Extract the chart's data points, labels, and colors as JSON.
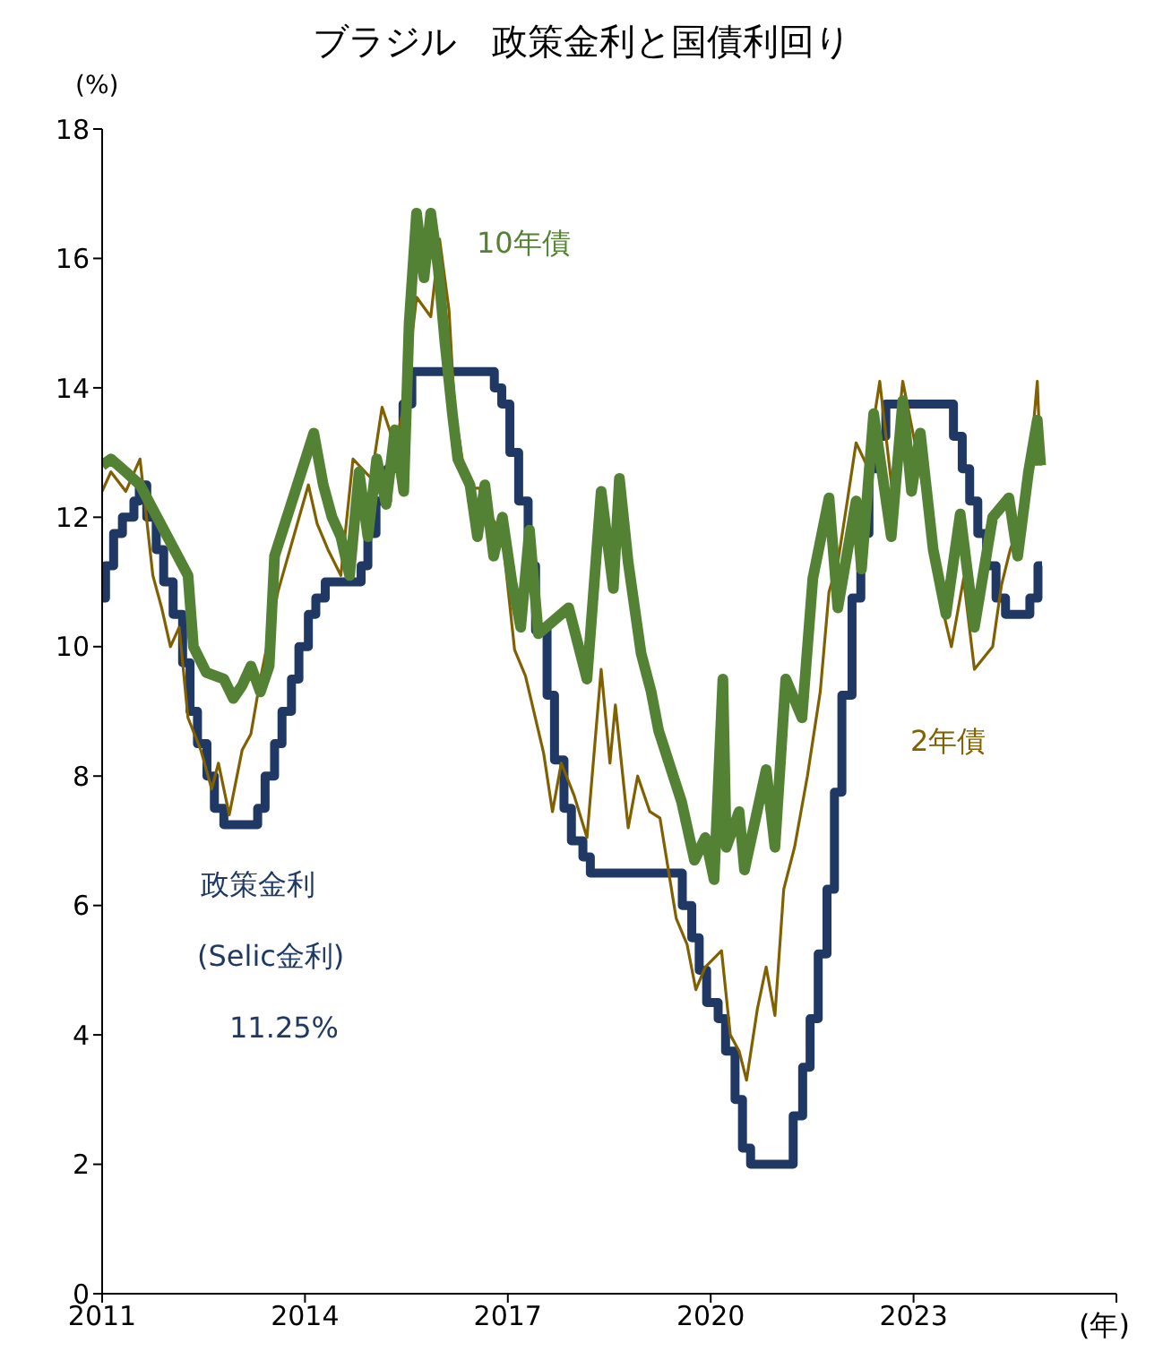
{
  "chart_data": {
    "type": "line",
    "title": "ブラジル　政策金利と国債利回り",
    "ylabel": "(%)",
    "xlabel": "(年)",
    "xlim": [
      2011,
      2026
    ],
    "xticks": [
      2011,
      2014,
      2017,
      2020,
      2023,
      {
        "value": 2026,
        "label": null
      }
    ],
    "ylim": [
      0,
      18
    ],
    "yticks": [
      0,
      2,
      4,
      6,
      8,
      10,
      12,
      14,
      16,
      18
    ],
    "marker": "none",
    "line_style": "solid",
    "annotations": [
      "(Selic金利)",
      "11.25%"
    ],
    "series": [
      {
        "name": "政策金利",
        "type": "step",
        "color": "#1f3864",
        "x": [
          2011.0,
          2011.05,
          2011.17,
          2011.3,
          2011.47,
          2011.55,
          2011.66,
          2011.8,
          2011.91,
          2012.05,
          2012.19,
          2012.3,
          2012.41,
          2012.55,
          2012.66,
          2012.8,
          2013.3,
          2013.41,
          2013.55,
          2013.66,
          2013.8,
          2013.91,
          2014.05,
          2014.16,
          2014.3,
          2014.83,
          2014.93,
          2015.05,
          2015.22,
          2015.33,
          2015.45,
          2015.58,
          2016.8,
          2016.91,
          2017.03,
          2017.16,
          2017.3,
          2017.41,
          2017.58,
          2017.69,
          2017.83,
          2017.94,
          2018.11,
          2018.22,
          2019.58,
          2019.72,
          2019.83,
          2019.94,
          2020.11,
          2020.22,
          2020.36,
          2020.47,
          2020.59,
          2021.22,
          2021.36,
          2021.47,
          2021.59,
          2021.72,
          2021.83,
          2021.94,
          2022.09,
          2022.22,
          2022.34,
          2022.47,
          2022.59,
          2023.59,
          2023.72,
          2023.83,
          2023.95,
          2024.08,
          2024.22,
          2024.36,
          2024.72,
          2024.84,
          2024.9
        ],
        "values": [
          10.75,
          11.25,
          11.75,
          12.0,
          12.25,
          12.5,
          12.0,
          11.5,
          11.0,
          10.5,
          9.75,
          9.0,
          8.5,
          8.0,
          7.5,
          7.25,
          7.5,
          8.0,
          8.5,
          9.0,
          9.5,
          10.0,
          10.5,
          10.75,
          11.0,
          11.25,
          11.75,
          12.25,
          12.75,
          13.25,
          13.75,
          14.25,
          14.0,
          13.75,
          13.0,
          12.25,
          11.25,
          10.25,
          9.25,
          8.25,
          7.5,
          7.0,
          6.75,
          6.5,
          6.0,
          5.5,
          5.0,
          4.5,
          4.25,
          3.75,
          3.0,
          2.25,
          2.0,
          2.75,
          3.5,
          4.25,
          5.25,
          6.25,
          7.75,
          9.25,
          10.75,
          11.75,
          12.75,
          13.25,
          13.75,
          13.25,
          12.75,
          12.25,
          11.75,
          11.25,
          10.75,
          10.5,
          10.75,
          11.25,
          11.25
        ]
      },
      {
        "name": "10年債",
        "type": "line",
        "color": "#548235",
        "x": [
          2011.0,
          2011.13,
          2011.35,
          2011.56,
          2012.27,
          2012.35,
          2012.54,
          2012.8,
          2012.94,
          2013.07,
          2013.2,
          2013.34,
          2013.47,
          2013.55,
          2014.13,
          2014.27,
          2014.4,
          2014.53,
          2014.66,
          2014.8,
          2014.93,
          2015.06,
          2015.2,
          2015.33,
          2015.46,
          2015.54,
          2015.65,
          2015.76,
          2015.86,
          2015.97,
          2016.07,
          2016.18,
          2016.26,
          2016.44,
          2016.55,
          2016.66,
          2016.79,
          2016.92,
          2017.06,
          2017.19,
          2017.32,
          2017.45,
          2017.9,
          2018.17,
          2018.38,
          2018.56,
          2018.65,
          2018.78,
          2018.97,
          2019.12,
          2019.23,
          2019.57,
          2019.76,
          2019.92,
          2020.05,
          2020.18,
          2020.23,
          2020.42,
          2020.5,
          2020.82,
          2020.95,
          2021.11,
          2021.35,
          2021.51,
          2021.75,
          2021.88,
          2022.15,
          2022.23,
          2022.41,
          2022.67,
          2022.84,
          2022.97,
          2023.1,
          2023.29,
          2023.48,
          2023.69,
          2023.9,
          2024.17,
          2024.41,
          2024.54,
          2024.7,
          2024.83,
          2024.88
        ],
        "values": [
          12.8,
          12.9,
          12.7,
          12.5,
          11.1,
          10.0,
          9.6,
          9.5,
          9.2,
          9.4,
          9.7,
          9.3,
          9.7,
          11.4,
          13.3,
          12.5,
          12.0,
          11.7,
          11.1,
          12.7,
          11.7,
          12.9,
          12.2,
          13.35,
          12.4,
          15.0,
          16.7,
          15.7,
          16.7,
          15.85,
          14.7,
          13.6,
          12.9,
          12.5,
          11.7,
          12.5,
          11.4,
          12.0,
          11.0,
          10.3,
          11.8,
          10.2,
          10.6,
          9.5,
          12.4,
          10.9,
          12.6,
          11.3,
          9.9,
          9.3,
          8.7,
          7.6,
          6.7,
          7.05,
          6.4,
          9.5,
          6.9,
          7.45,
          6.55,
          8.1,
          6.9,
          9.5,
          8.9,
          11.05,
          12.3,
          10.6,
          12.25,
          11.2,
          13.6,
          11.7,
          13.8,
          12.4,
          13.3,
          11.5,
          10.5,
          12.05,
          10.3,
          12.0,
          12.3,
          11.4,
          12.7,
          13.5,
          12.8
        ]
      },
      {
        "name": "2年債",
        "type": "line",
        "color": "#806000",
        "x": [
          2011.0,
          2011.13,
          2011.35,
          2011.56,
          2011.75,
          2011.88,
          2012.01,
          2012.14,
          2012.27,
          2012.46,
          2012.62,
          2012.72,
          2012.88,
          2013.07,
          2013.2,
          2013.34,
          2013.6,
          2014.05,
          2014.18,
          2014.34,
          2014.53,
          2014.71,
          2014.98,
          2015.14,
          2015.33,
          2015.46,
          2015.65,
          2015.86,
          2015.99,
          2016.13,
          2016.21,
          2016.39,
          2016.58,
          2016.74,
          2016.92,
          2017.1,
          2017.26,
          2017.53,
          2017.66,
          2017.79,
          2017.98,
          2018.17,
          2018.38,
          2018.51,
          2018.59,
          2018.78,
          2018.92,
          2019.1,
          2019.25,
          2019.49,
          2019.65,
          2019.78,
          2019.92,
          2020.16,
          2020.29,
          2020.42,
          2020.53,
          2020.69,
          2020.82,
          2020.95,
          2021.08,
          2021.24,
          2021.43,
          2021.62,
          2021.75,
          2021.88,
          2022.02,
          2022.15,
          2022.31,
          2022.5,
          2022.68,
          2022.84,
          2023.02,
          2023.21,
          2023.37,
          2023.56,
          2023.74,
          2023.9,
          2024.17,
          2024.3,
          2024.43,
          2024.62,
          2024.75,
          2024.83,
          2024.88
        ],
        "values": [
          12.4,
          12.7,
          12.4,
          12.9,
          11.1,
          10.6,
          10.0,
          10.3,
          8.9,
          8.4,
          7.8,
          8.2,
          7.4,
          8.4,
          8.65,
          9.5,
          10.85,
          12.5,
          11.9,
          11.5,
          11.1,
          12.9,
          12.6,
          13.7,
          13.1,
          13.7,
          15.4,
          15.1,
          16.3,
          15.2,
          13.7,
          12.45,
          12.45,
          12.05,
          11.7,
          9.95,
          9.55,
          8.35,
          7.45,
          8.2,
          7.7,
          7.05,
          9.65,
          8.2,
          9.1,
          7.2,
          8.0,
          7.45,
          7.35,
          5.8,
          5.4,
          4.7,
          5.05,
          5.3,
          4.0,
          3.75,
          3.3,
          4.4,
          5.05,
          4.3,
          6.25,
          6.9,
          8.0,
          9.3,
          10.85,
          11.3,
          12.25,
          13.15,
          12.8,
          14.1,
          12.45,
          14.1,
          13.15,
          12.05,
          10.85,
          10.0,
          11.05,
          9.65,
          10.0,
          10.95,
          11.5,
          12.0,
          13.15,
          14.1,
          12.8
        ]
      }
    ]
  }
}
